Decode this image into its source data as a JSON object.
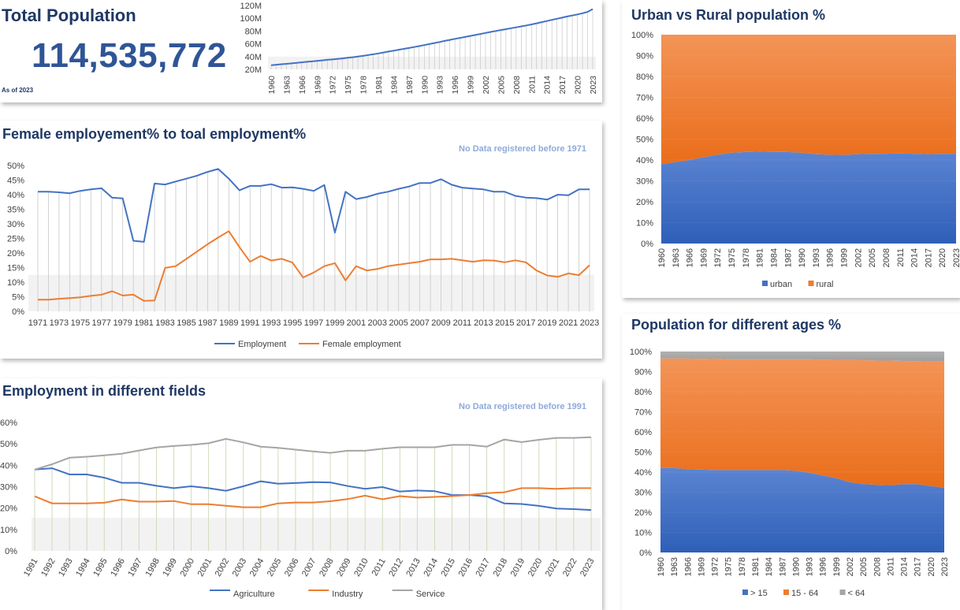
{
  "total": {
    "title": "Total Population",
    "value": "114,535,772",
    "as_of": "As of 2023"
  },
  "female": {
    "title": "Female employement% to toal employment%",
    "note": "No Data registered before 1971"
  },
  "fields": {
    "title": "Employment in different fields",
    "note": "No Data registered before 1991"
  },
  "urban": {
    "title": "Urban vs Rural population %"
  },
  "ages": {
    "title": "Population for different ages %"
  },
  "colors": {
    "blue": "#4472c4",
    "orange": "#ed7d31",
    "gray": "#a5a5a5",
    "title": "#1f3864"
  },
  "chart_data": [
    {
      "id": "population",
      "type": "line",
      "x": [
        1960,
        1961,
        1962,
        1963,
        1964,
        1965,
        1966,
        1967,
        1968,
        1969,
        1970,
        1971,
        1972,
        1973,
        1974,
        1975,
        1976,
        1977,
        1978,
        1979,
        1980,
        1981,
        1982,
        1983,
        1984,
        1985,
        1986,
        1987,
        1988,
        1989,
        1990,
        1991,
        1992,
        1993,
        1994,
        1995,
        1996,
        1997,
        1998,
        1999,
        2000,
        2001,
        2002,
        2003,
        2004,
        2005,
        2006,
        2007,
        2008,
        2009,
        2010,
        2011,
        2012,
        2013,
        2014,
        2015,
        2016,
        2017,
        2018,
        2019,
        2020,
        2021,
        2022,
        2023
      ],
      "x_tick_labels": [
        "1960",
        "1963",
        "1966",
        "1969",
        "1972",
        "1975",
        "1978",
        "1981",
        "1984",
        "1987",
        "1990",
        "1993",
        "1996",
        "1999",
        "2002",
        "2005",
        "2008",
        "2011",
        "2014",
        "2017",
        "2020",
        "2023"
      ],
      "series": [
        {
          "values": [
            26.6,
            27.3,
            28.0,
            28.7,
            29.4,
            30.2,
            31.0,
            31.8,
            32.5,
            33.3,
            34.1,
            34.9,
            35.6,
            36.4,
            37.2,
            38.1,
            39.0,
            40.0,
            41.1,
            42.3,
            43.6,
            45.0,
            46.4,
            47.9,
            49.3,
            50.7,
            52.1,
            53.5,
            54.9,
            56.4,
            58.0,
            59.6,
            61.2,
            62.9,
            64.6,
            66.2,
            67.8,
            69.3,
            70.8,
            72.3,
            73.8,
            75.4,
            77.0,
            78.6,
            80.1,
            81.6,
            83.0,
            84.4,
            85.8,
            87.3,
            88.8,
            90.4,
            92.1,
            93.9,
            95.7,
            97.5,
            99.3,
            101.0,
            102.8,
            104.5,
            106.1,
            107.9,
            110.0,
            114.5
          ]
        }
      ],
      "y_unit_ticks": [
        "20M",
        "40M",
        "60M",
        "80M",
        "100M",
        "120M"
      ],
      "ylim": [
        20,
        120
      ]
    },
    {
      "id": "female",
      "type": "line",
      "x": [
        1971,
        1972,
        1973,
        1974,
        1975,
        1976,
        1977,
        1978,
        1979,
        1980,
        1981,
        1982,
        1983,
        1984,
        1985,
        1986,
        1987,
        1988,
        1989,
        1990,
        1991,
        1992,
        1993,
        1994,
        1995,
        1996,
        1997,
        1998,
        1999,
        2000,
        2001,
        2002,
        2003,
        2004,
        2005,
        2006,
        2007,
        2008,
        2009,
        2010,
        2011,
        2012,
        2013,
        2014,
        2015,
        2016,
        2017,
        2018,
        2019,
        2020,
        2021,
        2022,
        2023
      ],
      "x_tick_labels": [
        "1971",
        "1973",
        "1975",
        "1977",
        "1979",
        "1981",
        "1983",
        "1985",
        "1987",
        "1989",
        "1991",
        "1993",
        "1995",
        "1997",
        "1999",
        "2001",
        "2003",
        "2005",
        "2007",
        "2009",
        "2011",
        "2013",
        "2015",
        "2017",
        "2019",
        "2021",
        "2023"
      ],
      "series": [
        {
          "name": "Employment",
          "values": [
            41,
            41,
            40.8,
            40.5,
            41.3,
            41.8,
            42.2,
            39,
            38.7,
            24.2,
            23.8,
            43.8,
            43.5,
            44.5,
            45.5,
            46.5,
            47.8,
            48.8,
            45.5,
            41.5,
            43,
            43,
            43.6,
            42.4,
            42.5,
            42,
            41.3,
            43.3,
            27,
            41,
            38.5,
            39.2,
            40.3,
            41,
            42,
            42.8,
            44,
            44,
            45.3,
            43.4,
            42.4,
            42.1,
            41.8,
            41,
            41,
            39.6,
            39,
            38.8,
            38.3,
            40,
            39.8,
            41.8,
            41.8
          ]
        },
        {
          "name": "Female employment",
          "values": [
            4,
            4,
            4.3,
            4.5,
            4.8,
            5.3,
            5.7,
            6.9,
            5.4,
            5.7,
            3.6,
            3.7,
            14.9,
            15.5,
            18,
            20.5,
            23,
            25.3,
            27.5,
            22,
            17,
            19,
            17.4,
            18,
            16.7,
            11.6,
            13.3,
            15.5,
            16.5,
            10.6,
            15.5,
            14,
            14.5,
            15.5,
            16,
            16.5,
            17,
            17.8,
            17.8,
            18,
            17.5,
            17,
            17.5,
            17.4,
            16.8,
            17.5,
            16.8,
            14,
            12.3,
            11.8,
            13,
            12.4,
            15.8
          ]
        }
      ],
      "y_tick_labels": [
        "0%",
        "5%",
        "10%",
        "15%",
        "20%",
        "25%",
        "30%",
        "35%",
        "40%",
        "45%",
        "50%"
      ],
      "ylim": [
        0,
        50
      ],
      "legend": "bottom"
    },
    {
      "id": "fields",
      "type": "line",
      "x": [
        "1991",
        "1992",
        "1993",
        "1994",
        "1995",
        "1996",
        "1997",
        "1998",
        "1999",
        "2000",
        "2001",
        "2002",
        "2003",
        "2004",
        "2005",
        "2006",
        "2007",
        "2008",
        "2009",
        "2010",
        "2011",
        "2012",
        "2013",
        "2014",
        "2015",
        "2016",
        "2017",
        "2018",
        "2019",
        "2020",
        "2021",
        "2022",
        "2023"
      ],
      "series": [
        {
          "name": "Agriculture",
          "values": [
            38,
            38.6,
            35.7,
            35.7,
            34.2,
            31.8,
            31.8,
            30.4,
            29.3,
            30.2,
            29.3,
            28.1,
            30.2,
            32.5,
            31.4,
            31.7,
            32.1,
            32,
            30.3,
            29,
            29.8,
            27.7,
            28.2,
            27.9,
            26.1,
            26.1,
            25.5,
            22.2,
            21.9,
            21,
            19.8,
            19.5,
            19.1
          ]
        },
        {
          "name": "Industry",
          "values": [
            25.5,
            22.2,
            22.2,
            22.2,
            22.5,
            24,
            23,
            23,
            23.3,
            21.8,
            21.8,
            21.1,
            20.4,
            20.4,
            22.2,
            22.6,
            22.6,
            23.2,
            24.2,
            25.8,
            24.1,
            25.6,
            24.9,
            25.2,
            25.6,
            26.1,
            27,
            27.4,
            29.3,
            29.3,
            29,
            29.3,
            29.3
          ]
        },
        {
          "name": "Service",
          "values": [
            38,
            40.5,
            43.5,
            44,
            44.6,
            45.4,
            46.9,
            48.3,
            49,
            49.5,
            50.3,
            52.3,
            50.7,
            48.7,
            48.1,
            47.3,
            46.5,
            45.8,
            46.8,
            46.8,
            47.7,
            48.4,
            48.4,
            48.4,
            49.5,
            49.5,
            48.7,
            52,
            50.8,
            51.9,
            52.8,
            52.8,
            53.1
          ]
        }
      ],
      "y_tick_labels": [
        "0%",
        "10%",
        "20%",
        "30%",
        "40%",
        "50%",
        "60%"
      ],
      "ylim": [
        0,
        60
      ],
      "legend": "bottom"
    },
    {
      "id": "urban",
      "type": "area",
      "x": [
        1960,
        1963,
        1966,
        1969,
        1972,
        1975,
        1978,
        1981,
        1984,
        1987,
        1990,
        1993,
        1996,
        1999,
        2002,
        2005,
        2008,
        2011,
        2014,
        2017,
        2020,
        2023
      ],
      "x_tick_labels": [
        "1960",
        "1963",
        "1966",
        "1969",
        "1972",
        "1975",
        "1978",
        "1981",
        "1984",
        "1987",
        "1990",
        "1993",
        "1996",
        "1999",
        "2002",
        "2005",
        "2008",
        "2011",
        "2014",
        "2017",
        "2020",
        "2023"
      ],
      "series": [
        {
          "name": "urban",
          "values": [
            38,
            39,
            40,
            41.3,
            42.5,
            43.5,
            43.8,
            44,
            43.9,
            43.8,
            43.5,
            42.8,
            42.5,
            42.4,
            42.8,
            42.9,
            43,
            43.1,
            43,
            42.8,
            42.9,
            43
          ]
        },
        {
          "name": "rural",
          "values": [
            62,
            61,
            60,
            58.7,
            57.5,
            56.5,
            56.2,
            56,
            56.1,
            56.2,
            56.5,
            57.2,
            57.5,
            57.6,
            57.2,
            57.1,
            57,
            56.9,
            57,
            57.2,
            57.1,
            57
          ]
        }
      ],
      "stacked": true,
      "y_tick_labels": [
        "0%",
        "10%",
        "20%",
        "30%",
        "40%",
        "50%",
        "60%",
        "70%",
        "80%",
        "90%",
        "100%"
      ],
      "ylim": [
        0,
        100
      ],
      "legend": "bottom"
    },
    {
      "id": "ages",
      "type": "area",
      "x": [
        1960,
        1963,
        1966,
        1969,
        1972,
        1975,
        1978,
        1981,
        1984,
        1987,
        1990,
        1993,
        1996,
        1999,
        2002,
        2005,
        2008,
        2011,
        2014,
        2017,
        2020,
        2023
      ],
      "x_tick_labels": [
        "1960",
        "1963",
        "1966",
        "1969",
        "1972",
        "1975",
        "1978",
        "1981",
        "1984",
        "1987",
        "1990",
        "1993",
        "1996",
        "1999",
        "2002",
        "2005",
        "2008",
        "2011",
        "2014",
        "2017",
        "2020",
        "2023"
      ],
      "series": [
        {
          "name": "> 15",
          "values": [
            42,
            42,
            41.5,
            41.2,
            41,
            41,
            41,
            41,
            41,
            41,
            40.7,
            39.7,
            38.3,
            37,
            35,
            34,
            33.7,
            33.5,
            34,
            34,
            33,
            32.2
          ]
        },
        {
          "name": "15 - 64",
          "values": [
            54.5,
            54.5,
            55,
            55.2,
            55.5,
            55.2,
            55.2,
            55.2,
            55.2,
            55.2,
            55.5,
            56.5,
            57.7,
            58.9,
            60.8,
            61.7,
            61.8,
            62,
            61.3,
            61.2,
            62,
            62.8
          ]
        },
        {
          "name": "< 64",
          "values": [
            3.5,
            3.5,
            3.5,
            3.6,
            3.5,
            3.8,
            3.8,
            3.8,
            3.8,
            3.8,
            3.8,
            3.8,
            4,
            4.1,
            4.2,
            4.3,
            4.5,
            4.5,
            4.7,
            4.8,
            5,
            5
          ]
        }
      ],
      "stacked": true,
      "y_tick_labels": [
        "0%",
        "10%",
        "20%",
        "30%",
        "40%",
        "50%",
        "60%",
        "70%",
        "80%",
        "90%",
        "100%"
      ],
      "ylim": [
        0,
        100
      ],
      "legend": "bottom"
    }
  ]
}
